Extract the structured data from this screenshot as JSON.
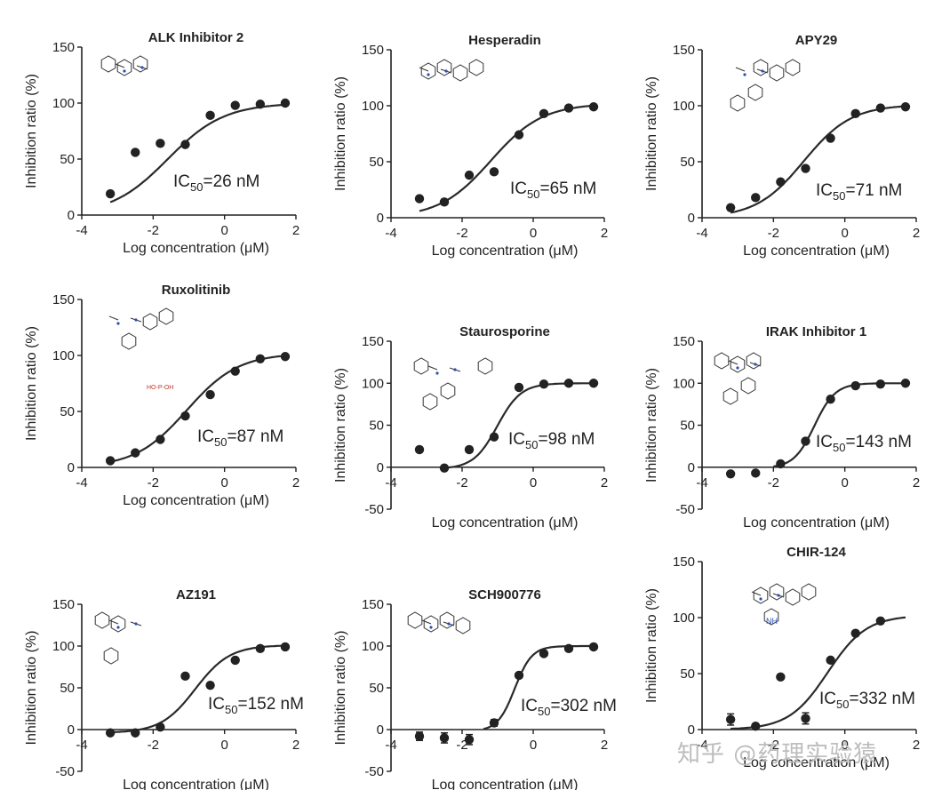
{
  "chart_data": [
    {
      "type": "scatter",
      "title": "ALK Inhibitor 2",
      "xlabel": "Log concentration (μM)",
      "ylabel": "Inhibition ratio (%)",
      "xlim": [
        -4,
        2
      ],
      "ylim": [
        0,
        150
      ],
      "xticks": [
        -4,
        -2,
        0,
        2
      ],
      "yticks": [
        0,
        50,
        100,
        150
      ],
      "ic50": {
        "prefix": "IC",
        "sub": "50",
        "value": "=26 nM"
      },
      "fit": {
        "bottom": 0,
        "top": 100,
        "logIC50": -1.59,
        "hill": 0.55,
        "xrange": [
          -3.2,
          1.7
        ]
      },
      "points": [
        {
          "x": -3.2,
          "y": 19
        },
        {
          "x": -2.5,
          "y": 56
        },
        {
          "x": -1.8,
          "y": 64
        },
        {
          "x": -1.1,
          "y": 63
        },
        {
          "x": -0.4,
          "y": 89
        },
        {
          "x": 0.3,
          "y": 98
        },
        {
          "x": 1.0,
          "y": 99
        },
        {
          "x": 1.7,
          "y": 100
        }
      ]
    },
    {
      "type": "scatter",
      "title": "Hesperadin",
      "xlabel": "Log concentration (μM)",
      "ylabel": "Inhibition ratio (%)",
      "xlim": [
        -4,
        2
      ],
      "ylim": [
        0,
        150
      ],
      "xticks": [
        -4,
        -2,
        0,
        2
      ],
      "yticks": [
        0,
        50,
        100,
        150
      ],
      "ic50": {
        "prefix": "IC",
        "sub": "50",
        "value": "=65 nM"
      },
      "fit": {
        "bottom": 0,
        "top": 102,
        "logIC50": -1.19,
        "hill": 0.6,
        "xrange": [
          -3.2,
          1.7
        ]
      },
      "points": [
        {
          "x": -3.2,
          "y": 17
        },
        {
          "x": -2.5,
          "y": 14
        },
        {
          "x": -1.8,
          "y": 38
        },
        {
          "x": -1.1,
          "y": 41
        },
        {
          "x": -0.4,
          "y": 74
        },
        {
          "x": 0.3,
          "y": 93
        },
        {
          "x": 1.0,
          "y": 98
        },
        {
          "x": 1.7,
          "y": 99
        }
      ]
    },
    {
      "type": "scatter",
      "title": "APY29",
      "xlabel": "Log concentration (μM)",
      "ylabel": "Inhibition ratio (%)",
      "xlim": [
        -4,
        2
      ],
      "ylim": [
        0,
        150
      ],
      "xticks": [
        -4,
        -2,
        0,
        2
      ],
      "yticks": [
        0,
        50,
        100,
        150
      ],
      "ic50": {
        "prefix": "IC",
        "sub": "50",
        "value": "=71 nM"
      },
      "fit": {
        "bottom": 0,
        "top": 101,
        "logIC50": -1.15,
        "hill": 0.65,
        "xrange": [
          -3.2,
          1.7
        ]
      },
      "points": [
        {
          "x": -3.2,
          "y": 9
        },
        {
          "x": -2.5,
          "y": 18
        },
        {
          "x": -1.8,
          "y": 32
        },
        {
          "x": -1.1,
          "y": 44
        },
        {
          "x": -0.4,
          "y": 71
        },
        {
          "x": 0.3,
          "y": 93
        },
        {
          "x": 1.0,
          "y": 98
        },
        {
          "x": 1.7,
          "y": 99
        }
      ]
    },
    {
      "type": "scatter",
      "title": "Ruxolitinib",
      "xlabel": "Log concentration (μM)",
      "ylabel": "Inhibition ratio (%)",
      "xlim": [
        -4,
        2
      ],
      "ylim": [
        0,
        150
      ],
      "xticks": [
        -4,
        -2,
        0,
        2
      ],
      "yticks": [
        0,
        50,
        100,
        150
      ],
      "ic50": {
        "prefix": "IC",
        "sub": "50",
        "value": "=87 nM"
      },
      "fit": {
        "bottom": 0,
        "top": 102,
        "logIC50": -1.06,
        "hill": 0.6,
        "xrange": [
          -3.2,
          1.7
        ]
      },
      "points": [
        {
          "x": -3.2,
          "y": 6
        },
        {
          "x": -2.5,
          "y": 13
        },
        {
          "x": -1.8,
          "y": 25
        },
        {
          "x": -1.1,
          "y": 46
        },
        {
          "x": -0.4,
          "y": 65
        },
        {
          "x": 0.3,
          "y": 86
        },
        {
          "x": 1.0,
          "y": 97
        },
        {
          "x": 1.7,
          "y": 99
        }
      ]
    },
    {
      "type": "scatter",
      "title": "Staurosporine",
      "xlabel": "Log concentration (μM)",
      "ylabel": "Inhibition ratio (%)",
      "xlim": [
        -4,
        2
      ],
      "ylim": [
        -50,
        150
      ],
      "xticks": [
        -4,
        -2,
        0,
        2
      ],
      "yticks": [
        -50,
        0,
        50,
        100,
        150
      ],
      "ic50": {
        "prefix": "IC",
        "sub": "50",
        "value": "=98 nM"
      },
      "fit": {
        "bottom": -2,
        "top": 100,
        "logIC50": -1.01,
        "hill": 1.3,
        "xrange": [
          -2.5,
          1.7
        ]
      },
      "points": [
        {
          "x": -3.2,
          "y": 21
        },
        {
          "x": -2.5,
          "y": -1
        },
        {
          "x": -1.8,
          "y": 21
        },
        {
          "x": -1.1,
          "y": 36
        },
        {
          "x": -0.4,
          "y": 95
        },
        {
          "x": 0.3,
          "y": 99
        },
        {
          "x": 1.0,
          "y": 100
        },
        {
          "x": 1.7,
          "y": 100
        }
      ]
    },
    {
      "type": "scatter",
      "title": "IRAK Inhibitor 1",
      "xlabel": "Log concentration (μM)",
      "ylabel": "Inhibition ratio (%)",
      "xlim": [
        -4,
        2
      ],
      "ylim": [
        -50,
        150
      ],
      "xticks": [
        -4,
        -2,
        0,
        2
      ],
      "yticks": [
        -50,
        0,
        50,
        100,
        150
      ],
      "ic50": {
        "prefix": "IC",
        "sub": "50",
        "value": "=143 nM"
      },
      "fit": {
        "bottom": -1,
        "top": 100,
        "logIC50": -0.85,
        "hill": 1.5,
        "xrange": [
          -2.0,
          1.7
        ]
      },
      "points": [
        {
          "x": -3.2,
          "y": -8
        },
        {
          "x": -2.5,
          "y": -7
        },
        {
          "x": -1.8,
          "y": 4
        },
        {
          "x": -1.1,
          "y": 31
        },
        {
          "x": -0.4,
          "y": 81
        },
        {
          "x": 0.3,
          "y": 97
        },
        {
          "x": 1.0,
          "y": 99
        },
        {
          "x": 1.7,
          "y": 100
        }
      ]
    },
    {
      "type": "scatter",
      "title": "AZ191",
      "xlabel": "Log concentration (μM)",
      "ylabel": "Inhibition ratio (%)",
      "xlim": [
        -4,
        2
      ],
      "ylim": [
        -50,
        150
      ],
      "xticks": [
        -4,
        -2,
        0,
        2
      ],
      "yticks": [
        -50,
        0,
        50,
        100,
        150
      ],
      "ic50": {
        "prefix": "IC",
        "sub": "50",
        "value": "=152 nM"
      },
      "fit": {
        "bottom": -4,
        "top": 101,
        "logIC50": -0.82,
        "hill": 0.9,
        "xrange": [
          -3.2,
          1.7
        ]
      },
      "points": [
        {
          "x": -3.2,
          "y": -4
        },
        {
          "x": -2.5,
          "y": -4
        },
        {
          "x": -1.8,
          "y": 3
        },
        {
          "x": -1.1,
          "y": 64
        },
        {
          "x": -0.4,
          "y": 53
        },
        {
          "x": 0.3,
          "y": 83
        },
        {
          "x": 1.0,
          "y": 97
        },
        {
          "x": 1.7,
          "y": 99
        }
      ]
    },
    {
      "type": "scatter",
      "title": "SCH900776",
      "xlabel": "Log concentration (μM)",
      "ylabel": "Inhibition ratio (%)",
      "xlim": [
        -4,
        2
      ],
      "ylim": [
        -50,
        150
      ],
      "xticks": [
        -4,
        -2,
        0,
        2
      ],
      "yticks": [
        -50,
        0,
        50,
        100,
        150
      ],
      "ic50": {
        "prefix": "IC",
        "sub": "50",
        "value": "=302 nM"
      },
      "fit": {
        "bottom": -2,
        "top": 100,
        "logIC50": -0.52,
        "hill": 1.8,
        "xrange": [
          -1.4,
          1.7
        ]
      },
      "points": [
        {
          "x": -3.2,
          "y": -8,
          "err": 5
        },
        {
          "x": -2.5,
          "y": -10,
          "err": 6
        },
        {
          "x": -1.8,
          "y": -12,
          "err": 6
        },
        {
          "x": -1.1,
          "y": 8,
          "err": 4
        },
        {
          "x": -0.4,
          "y": 65
        },
        {
          "x": 0.3,
          "y": 91
        },
        {
          "x": 1.0,
          "y": 97
        },
        {
          "x": 1.7,
          "y": 99
        }
      ]
    },
    {
      "type": "scatter",
      "title": "CHIR-124",
      "xlabel": "Log concentration (μM)",
      "ylabel": "Inhibition ratio (%)",
      "xlim": [
        -4,
        2
      ],
      "ylim": [
        0,
        150
      ],
      "xticks": [
        -4,
        -2,
        0,
        2
      ],
      "yticks": [
        0,
        50,
        100,
        150
      ],
      "ic50": {
        "prefix": "IC",
        "sub": "50",
        "value": "=332 nM"
      },
      "fit": {
        "bottom": 0,
        "top": 102,
        "logIC50": -0.48,
        "hill": 0.8,
        "xrange": [
          -3.2,
          1.7
        ]
      },
      "points": [
        {
          "x": -3.2,
          "y": 9,
          "err": 5
        },
        {
          "x": -2.5,
          "y": 3
        },
        {
          "x": -1.8,
          "y": 47
        },
        {
          "x": -1.1,
          "y": 10,
          "err": 5
        },
        {
          "x": -0.4,
          "y": 62
        },
        {
          "x": 0.3,
          "y": 86
        },
        {
          "x": 1.0,
          "y": 97
        }
      ]
    }
  ],
  "watermark": "知乎 @药理实验猿",
  "extra_text": {
    "phosphate_label": "HO-P-OH",
    "nh_label": "NH"
  }
}
